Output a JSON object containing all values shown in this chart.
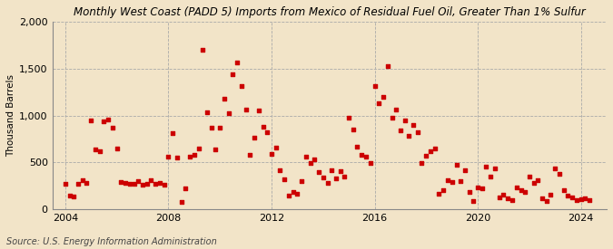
{
  "title": "Monthly West Coast (PADD 5) Imports from Mexico of Residual Fuel Oil, Greater Than 1% Sulfur",
  "ylabel": "Thousand Barrels",
  "source": "Source: U.S. Energy Information Administration",
  "bg_color": "#f2e4c8",
  "plot_bg_color": "#f2e4c8",
  "marker_color": "#cc0000",
  "ylim": [
    0,
    2000
  ],
  "yticks": [
    0,
    500,
    1000,
    1500,
    2000
  ],
  "xlim_start": 2003.5,
  "xlim_end": 2025.0,
  "xticks": [
    2004,
    2008,
    2012,
    2016,
    2020,
    2024
  ],
  "data": [
    [
      2004.0,
      270
    ],
    [
      2004.17,
      150
    ],
    [
      2004.33,
      140
    ],
    [
      2004.5,
      270
    ],
    [
      2004.67,
      310
    ],
    [
      2004.83,
      280
    ],
    [
      2005.0,
      950
    ],
    [
      2005.17,
      640
    ],
    [
      2005.33,
      620
    ],
    [
      2005.5,
      940
    ],
    [
      2005.67,
      960
    ],
    [
      2005.83,
      870
    ],
    [
      2006.0,
      650
    ],
    [
      2006.17,
      290
    ],
    [
      2006.33,
      280
    ],
    [
      2006.5,
      270
    ],
    [
      2006.67,
      270
    ],
    [
      2006.83,
      300
    ],
    [
      2007.0,
      260
    ],
    [
      2007.17,
      270
    ],
    [
      2007.33,
      310
    ],
    [
      2007.5,
      270
    ],
    [
      2007.67,
      280
    ],
    [
      2007.83,
      260
    ],
    [
      2008.0,
      560
    ],
    [
      2008.17,
      810
    ],
    [
      2008.33,
      550
    ],
    [
      2008.5,
      80
    ],
    [
      2008.67,
      220
    ],
    [
      2008.83,
      560
    ],
    [
      2009.0,
      580
    ],
    [
      2009.17,
      650
    ],
    [
      2009.33,
      1700
    ],
    [
      2009.5,
      1030
    ],
    [
      2009.67,
      870
    ],
    [
      2009.83,
      640
    ],
    [
      2010.0,
      870
    ],
    [
      2010.17,
      1180
    ],
    [
      2010.33,
      1020
    ],
    [
      2010.5,
      1440
    ],
    [
      2010.67,
      1560
    ],
    [
      2010.83,
      1310
    ],
    [
      2011.0,
      1060
    ],
    [
      2011.17,
      580
    ],
    [
      2011.33,
      760
    ],
    [
      2011.5,
      1050
    ],
    [
      2011.67,
      880
    ],
    [
      2011.83,
      820
    ],
    [
      2012.0,
      590
    ],
    [
      2012.17,
      660
    ],
    [
      2012.33,
      420
    ],
    [
      2012.5,
      320
    ],
    [
      2012.67,
      150
    ],
    [
      2012.83,
      190
    ],
    [
      2013.0,
      170
    ],
    [
      2013.17,
      300
    ],
    [
      2013.33,
      560
    ],
    [
      2013.5,
      490
    ],
    [
      2013.67,
      530
    ],
    [
      2013.83,
      400
    ],
    [
      2014.0,
      340
    ],
    [
      2014.17,
      280
    ],
    [
      2014.33,
      420
    ],
    [
      2014.5,
      330
    ],
    [
      2014.67,
      410
    ],
    [
      2014.83,
      350
    ],
    [
      2015.0,
      980
    ],
    [
      2015.17,
      850
    ],
    [
      2015.33,
      670
    ],
    [
      2015.5,
      580
    ],
    [
      2015.67,
      560
    ],
    [
      2015.83,
      490
    ],
    [
      2016.0,
      1310
    ],
    [
      2016.17,
      1130
    ],
    [
      2016.33,
      1200
    ],
    [
      2016.5,
      1530
    ],
    [
      2016.67,
      980
    ],
    [
      2016.83,
      1060
    ],
    [
      2017.0,
      840
    ],
    [
      2017.17,
      950
    ],
    [
      2017.33,
      780
    ],
    [
      2017.5,
      900
    ],
    [
      2017.67,
      820
    ],
    [
      2017.83,
      490
    ],
    [
      2018.0,
      570
    ],
    [
      2018.17,
      620
    ],
    [
      2018.33,
      650
    ],
    [
      2018.5,
      170
    ],
    [
      2018.67,
      200
    ],
    [
      2018.83,
      310
    ],
    [
      2019.0,
      290
    ],
    [
      2019.17,
      470
    ],
    [
      2019.33,
      300
    ],
    [
      2019.5,
      420
    ],
    [
      2019.67,
      190
    ],
    [
      2019.83,
      90
    ],
    [
      2020.0,
      230
    ],
    [
      2020.17,
      220
    ],
    [
      2020.33,
      460
    ],
    [
      2020.5,
      350
    ],
    [
      2020.67,
      440
    ],
    [
      2020.83,
      130
    ],
    [
      2021.0,
      160
    ],
    [
      2021.17,
      120
    ],
    [
      2021.33,
      100
    ],
    [
      2021.5,
      230
    ],
    [
      2021.67,
      200
    ],
    [
      2021.83,
      190
    ],
    [
      2022.0,
      350
    ],
    [
      2022.17,
      280
    ],
    [
      2022.33,
      310
    ],
    [
      2022.5,
      120
    ],
    [
      2022.67,
      90
    ],
    [
      2022.83,
      160
    ],
    [
      2023.0,
      440
    ],
    [
      2023.17,
      380
    ],
    [
      2023.33,
      200
    ],
    [
      2023.5,
      150
    ],
    [
      2023.67,
      130
    ],
    [
      2023.83,
      100
    ],
    [
      2024.0,
      110
    ],
    [
      2024.17,
      120
    ],
    [
      2024.33,
      100
    ]
  ]
}
